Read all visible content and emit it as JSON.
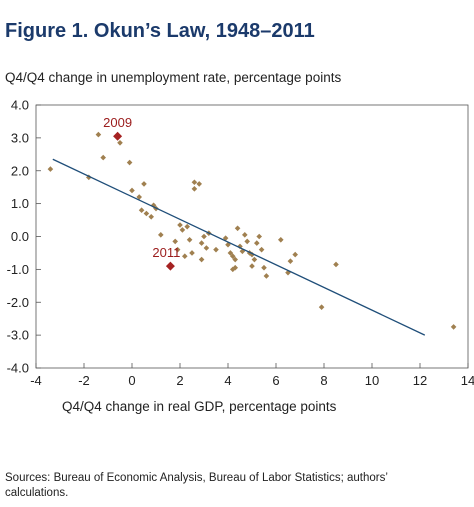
{
  "title": "Figure 1. Okun’s Law, 1948–2011",
  "source_note": "Sources: Bureau of Economic Analysis, Bureau of Labor Statistics; authors’ calculations.",
  "colors": {
    "title": "#1b3a6b",
    "point": "#a08050",
    "highlight": "#a52222",
    "fit_line": "#1f4e79"
  },
  "chart_data": {
    "type": "scatter",
    "title": "Figure 1. Okun’s Law, 1948–2011",
    "xlabel": "Q4/Q4 change in real GDP, percentage points",
    "ylabel": "Q4/Q4 change in unemployment rate, percentage points",
    "xlim": [
      -4,
      14
    ],
    "ylim": [
      -4.0,
      4.0
    ],
    "xticks": [
      "-4",
      "-2",
      "0",
      "2",
      "4",
      "6",
      "8",
      "10",
      "12",
      "14"
    ],
    "yticks": [
      "4.0",
      "3.0",
      "2.0",
      "1.0",
      "0.0",
      "-1.0",
      "-2.0",
      "-3.0",
      "-4.0"
    ],
    "grid": false,
    "points": [
      [
        -3.4,
        2.05
      ],
      [
        -1.4,
        3.1
      ],
      [
        -1.2,
        2.4
      ],
      [
        -1.8,
        1.8
      ],
      [
        -0.5,
        2.85
      ],
      [
        -0.1,
        2.25
      ],
      [
        0.0,
        1.4
      ],
      [
        0.4,
        0.8
      ],
      [
        0.5,
        1.6
      ],
      [
        0.6,
        0.7
      ],
      [
        0.3,
        1.2
      ],
      [
        0.9,
        0.95
      ],
      [
        1.0,
        0.85
      ],
      [
        0.8,
        0.6
      ],
      [
        1.2,
        0.05
      ],
      [
        1.8,
        -0.15
      ],
      [
        2.0,
        0.35
      ],
      [
        2.1,
        0.2
      ],
      [
        2.3,
        0.3
      ],
      [
        2.4,
        -0.1
      ],
      [
        2.5,
        -0.5
      ],
      [
        2.6,
        1.65
      ],
      [
        2.6,
        1.45
      ],
      [
        2.8,
        1.6
      ],
      [
        2.9,
        -0.2
      ],
      [
        3.0,
        0.0
      ],
      [
        3.1,
        -0.35
      ],
      [
        2.9,
        -0.7
      ],
      [
        3.2,
        0.1
      ],
      [
        3.5,
        -0.4
      ],
      [
        1.9,
        -0.4
      ],
      [
        2.2,
        -0.6
      ],
      [
        3.9,
        -0.05
      ],
      [
        4.0,
        -0.25
      ],
      [
        4.1,
        -0.5
      ],
      [
        4.2,
        -0.6
      ],
      [
        4.3,
        -0.7
      ],
      [
        4.3,
        -0.95
      ],
      [
        4.2,
        -1.0
      ],
      [
        4.4,
        0.25
      ],
      [
        4.5,
        -0.3
      ],
      [
        4.6,
        -0.45
      ],
      [
        4.7,
        0.05
      ],
      [
        4.8,
        -0.15
      ],
      [
        4.9,
        -0.5
      ],
      [
        5.0,
        -0.55
      ],
      [
        5.0,
        -0.9
      ],
      [
        5.1,
        -0.7
      ],
      [
        5.2,
        -0.2
      ],
      [
        5.3,
        0.0
      ],
      [
        5.4,
        -0.4
      ],
      [
        5.5,
        -0.95
      ],
      [
        5.6,
        -1.2
      ],
      [
        6.2,
        -0.1
      ],
      [
        6.5,
        -1.1
      ],
      [
        6.6,
        -0.75
      ],
      [
        6.8,
        -0.55
      ],
      [
        7.9,
        -2.15
      ],
      [
        8.5,
        -0.85
      ],
      [
        13.4,
        -2.75
      ]
    ],
    "highlights": [
      {
        "label": "2009",
        "x": -0.6,
        "y": 3.05
      },
      {
        "label": "2011",
        "x": 1.6,
        "y": -0.9
      }
    ],
    "fit_line": {
      "x": [
        -3.3,
        12.2
      ],
      "y": [
        2.35,
        -3.0
      ]
    }
  }
}
